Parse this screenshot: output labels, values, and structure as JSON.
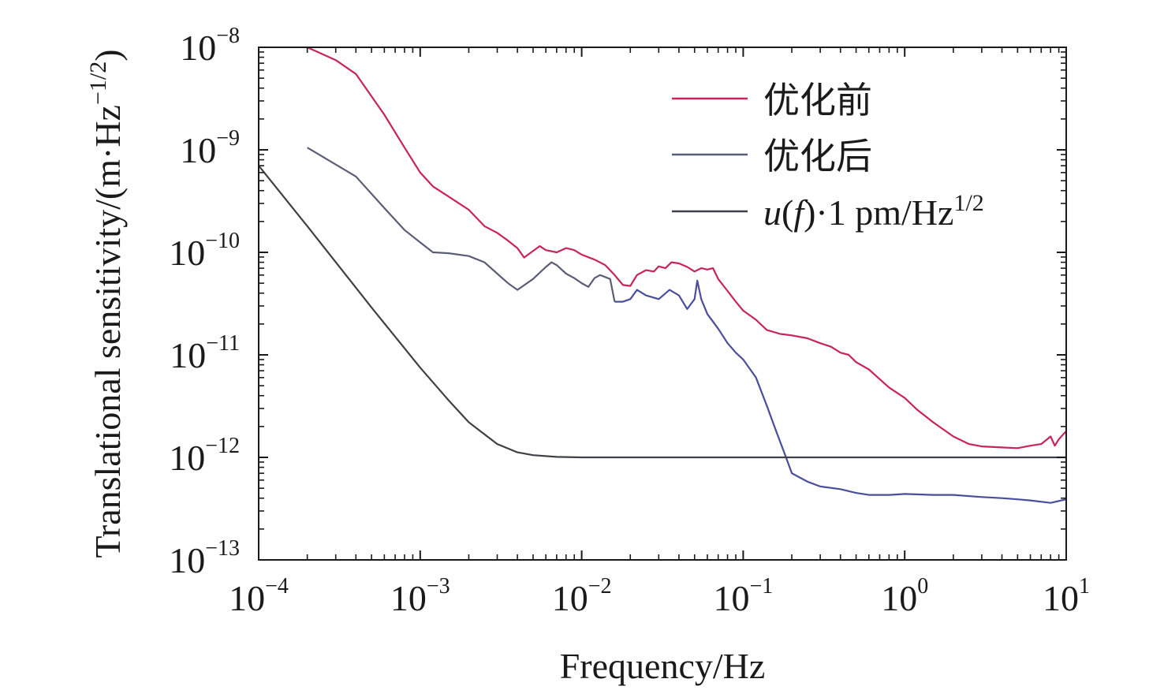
{
  "chart_data": {
    "type": "line",
    "xscale": "log",
    "yscale": "log",
    "xlabel": "Frequency/Hz",
    "ylabel": "Translational sensitivity/(m·Hz",
    "ylabel_sup": "−1/2",
    "ylabel_close": ")",
    "xlim": [
      0.0001,
      10
    ],
    "ylim": [
      1e-13,
      1e-08
    ],
    "grid": false,
    "legend_position": "top-right",
    "x_ticks": [
      {
        "base": "10",
        "exp": "−4",
        "value": 0.0001
      },
      {
        "base": "10",
        "exp": "−3",
        "value": 0.001
      },
      {
        "base": "10",
        "exp": "−2",
        "value": 0.01
      },
      {
        "base": "10",
        "exp": "−1",
        "value": 0.1
      },
      {
        "base": "10",
        "exp": "0",
        "value": 1
      },
      {
        "base": "10",
        "exp": "1",
        "value": 10
      }
    ],
    "y_ticks": [
      {
        "base": "10",
        "exp": "−8",
        "value": 1e-08
      },
      {
        "base": "10",
        "exp": "−9",
        "value": 1e-09
      },
      {
        "base": "10",
        "exp": "−10",
        "value": 1e-10
      },
      {
        "base": "10",
        "exp": "−11",
        "value": 1e-11
      },
      {
        "base": "10",
        "exp": "−12",
        "value": 1e-12
      },
      {
        "base": "10",
        "exp": "−13",
        "value": 1e-13
      }
    ],
    "series": [
      {
        "name": "优化前",
        "color": "#c8245a",
        "legend": {
          "text": "优化前"
        },
        "points": [
          [
            0.0002,
            1e-08
          ],
          [
            0.0003,
            7.5e-09
          ],
          [
            0.0004,
            5.5e-09
          ],
          [
            0.0006,
            2.2e-09
          ],
          [
            0.0008,
            1.05e-09
          ],
          [
            0.001,
            6e-10
          ],
          [
            0.0012,
            4.4e-10
          ],
          [
            0.0015,
            3.5e-10
          ],
          [
            0.002,
            2.6e-10
          ],
          [
            0.0025,
            1.8e-10
          ],
          [
            0.003,
            1.55e-10
          ],
          [
            0.0035,
            1.3e-10
          ],
          [
            0.004,
            1.1e-10
          ],
          [
            0.0044,
            8.9e-11
          ],
          [
            0.005,
            1.03e-10
          ],
          [
            0.0055,
            1.15e-10
          ],
          [
            0.006,
            1.05e-10
          ],
          [
            0.007,
            1e-10
          ],
          [
            0.008,
            1.1e-10
          ],
          [
            0.009,
            1.05e-10
          ],
          [
            0.01,
            9.5e-11
          ],
          [
            0.012,
            8.5e-11
          ],
          [
            0.014,
            7.5e-11
          ],
          [
            0.016,
            6e-11
          ],
          [
            0.018,
            4.8e-11
          ],
          [
            0.02,
            4.7e-11
          ],
          [
            0.022,
            6e-11
          ],
          [
            0.025,
            6.7e-11
          ],
          [
            0.028,
            6.5e-11
          ],
          [
            0.03,
            7.3e-11
          ],
          [
            0.033,
            7e-11
          ],
          [
            0.036,
            8e-11
          ],
          [
            0.04,
            7.8e-11
          ],
          [
            0.045,
            7.2e-11
          ],
          [
            0.05,
            6.5e-11
          ],
          [
            0.055,
            7e-11
          ],
          [
            0.06,
            6.8e-11
          ],
          [
            0.065,
            7e-11
          ],
          [
            0.07,
            5.5e-11
          ],
          [
            0.08,
            4.2e-11
          ],
          [
            0.09,
            3.3e-11
          ],
          [
            0.1,
            2.7e-11
          ],
          [
            0.12,
            2.2e-11
          ],
          [
            0.14,
            1.75e-11
          ],
          [
            0.17,
            1.6e-11
          ],
          [
            0.2,
            1.55e-11
          ],
          [
            0.25,
            1.45e-11
          ],
          [
            0.3,
            1.3e-11
          ],
          [
            0.35,
            1.2e-11
          ],
          [
            0.4,
            1.05e-11
          ],
          [
            0.45,
            1e-11
          ],
          [
            0.5,
            8.5e-12
          ],
          [
            0.6,
            7.2e-12
          ],
          [
            0.7,
            5.8e-12
          ],
          [
            0.8,
            4.8e-12
          ],
          [
            1.0,
            3.8e-12
          ],
          [
            1.2,
            2.9e-12
          ],
          [
            1.5,
            2.2e-12
          ],
          [
            2.0,
            1.6e-12
          ],
          [
            2.5,
            1.35e-12
          ],
          [
            3.0,
            1.28e-12
          ],
          [
            4.0,
            1.25e-12
          ],
          [
            5.0,
            1.23e-12
          ],
          [
            6.0,
            1.3e-12
          ],
          [
            7.0,
            1.35e-12
          ],
          [
            8.0,
            1.6e-12
          ],
          [
            8.5,
            1.3e-12
          ],
          [
            9.0,
            1.5e-12
          ],
          [
            9.5,
            1.65e-12
          ],
          [
            10.0,
            1.8e-12
          ]
        ]
      },
      {
        "name": "优化后",
        "color": "#5a5e74",
        "tail_color": "#4a4e9c",
        "tail_from": 0.016,
        "legend": {
          "text": "优化后"
        },
        "points": [
          [
            0.0002,
            1.05e-09
          ],
          [
            0.0004,
            5.5e-10
          ],
          [
            0.0006,
            2.7e-10
          ],
          [
            0.0008,
            1.65e-10
          ],
          [
            0.001,
            1.25e-10
          ],
          [
            0.0012,
            1e-10
          ],
          [
            0.0015,
            9.8e-11
          ],
          [
            0.002,
            9.2e-11
          ],
          [
            0.0025,
            8e-11
          ],
          [
            0.003,
            6.2e-11
          ],
          [
            0.0035,
            5e-11
          ],
          [
            0.004,
            4.3e-11
          ],
          [
            0.005,
            5.5e-11
          ],
          [
            0.006,
            7.2e-11
          ],
          [
            0.0065,
            8e-11
          ],
          [
            0.007,
            7.5e-11
          ],
          [
            0.008,
            6.2e-11
          ],
          [
            0.009,
            5.6e-11
          ],
          [
            0.01,
            5e-11
          ],
          [
            0.011,
            4.6e-11
          ],
          [
            0.012,
            5.6e-11
          ],
          [
            0.013,
            6e-11
          ],
          [
            0.015,
            5.5e-11
          ],
          [
            0.016,
            3.3e-11
          ],
          [
            0.018,
            3.3e-11
          ],
          [
            0.02,
            3.5e-11
          ],
          [
            0.022,
            4.3e-11
          ],
          [
            0.025,
            3.8e-11
          ],
          [
            0.03,
            3.5e-11
          ],
          [
            0.035,
            4.3e-11
          ],
          [
            0.04,
            3.8e-11
          ],
          [
            0.045,
            2.8e-11
          ],
          [
            0.05,
            3.5e-11
          ],
          [
            0.052,
            5.3e-11
          ],
          [
            0.055,
            3.5e-11
          ],
          [
            0.06,
            2.5e-11
          ],
          [
            0.07,
            1.8e-11
          ],
          [
            0.08,
            1.3e-11
          ],
          [
            0.09,
            1.05e-11
          ],
          [
            0.1,
            9e-12
          ],
          [
            0.12,
            6e-12
          ],
          [
            0.14,
            3.2e-12
          ],
          [
            0.16,
            1.8e-12
          ],
          [
            0.18,
            1.1e-12
          ],
          [
            0.2,
            7e-13
          ],
          [
            0.25,
            5.8e-13
          ],
          [
            0.3,
            5.2e-13
          ],
          [
            0.4,
            4.9e-13
          ],
          [
            0.5,
            4.5e-13
          ],
          [
            0.6,
            4.3e-13
          ],
          [
            0.8,
            4.3e-13
          ],
          [
            1.0,
            4.4e-13
          ],
          [
            1.5,
            4.3e-13
          ],
          [
            2.0,
            4.3e-13
          ],
          [
            3.0,
            4.1e-13
          ],
          [
            4.0,
            4e-13
          ],
          [
            5.0,
            3.9e-13
          ],
          [
            6.0,
            3.8e-13
          ],
          [
            8.0,
            3.6e-13
          ],
          [
            10.0,
            3.9e-13
          ]
        ]
      },
      {
        "name": "u(f)·1 pm/Hz1/2",
        "color": "#3f4046",
        "legend": {
          "italic_u": "u",
          "paren_open": "(",
          "italic_f": "f",
          "rest": ")·1 pm/Hz",
          "sup": "1/2"
        },
        "points": [
          [
            0.0001,
            7e-10
          ],
          [
            0.0002,
            1.8e-10
          ],
          [
            0.0005,
            2.9e-11
          ],
          [
            0.001,
            7.5e-12
          ],
          [
            0.0015,
            3.6e-12
          ],
          [
            0.002,
            2.2e-12
          ],
          [
            0.003,
            1.35e-12
          ],
          [
            0.004,
            1.12e-12
          ],
          [
            0.005,
            1.05e-12
          ],
          [
            0.007,
            1.01e-12
          ],
          [
            0.01,
            1e-12
          ],
          [
            0.1,
            1e-12
          ],
          [
            1.0,
            1e-12
          ],
          [
            10.0,
            1e-12
          ]
        ]
      }
    ]
  }
}
